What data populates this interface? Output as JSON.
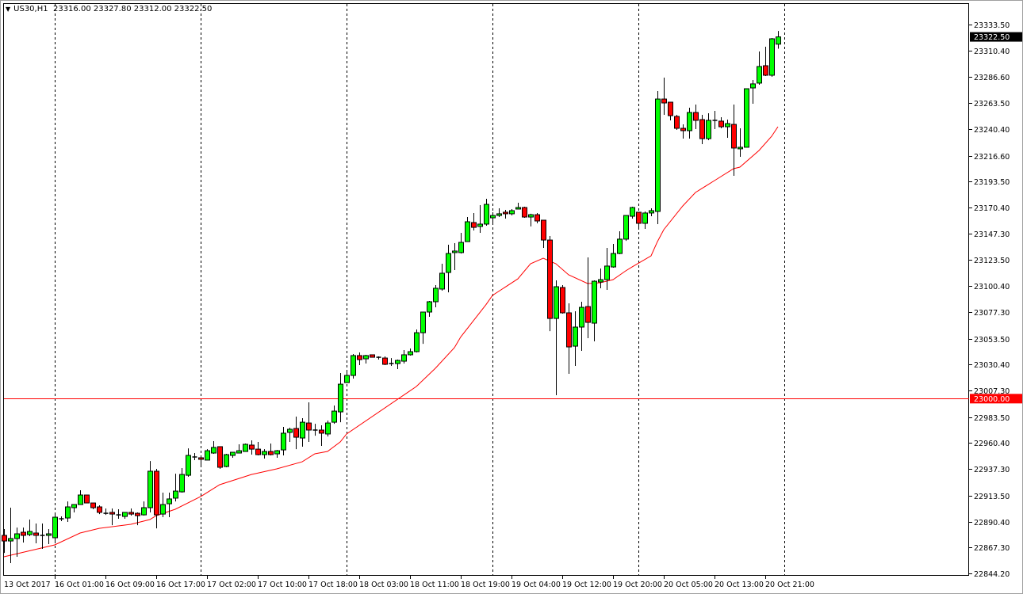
{
  "header": {
    "menu_icon": "triangle-down-icon",
    "symbol": "US30,H1",
    "ohlc": "23316.00 23327.80 23312.00 23322.50"
  },
  "colors": {
    "bull": "#00ff00",
    "bear": "#ff0000",
    "wick": "#000000",
    "ma": "#ff0000",
    "level_line": "#ff0000",
    "grid_separator": "#000000",
    "background": "#ffffff"
  },
  "chart_data": {
    "type": "candlestick",
    "symbol": "US30",
    "timeframe": "H1",
    "ylim": [
      22844.2,
      23333.5
    ],
    "grid": false,
    "y_ticks": [
      "23333.50",
      "23310.40",
      "23286.60",
      "23263.50",
      "23240.40",
      "23216.60",
      "23193.50",
      "23170.40",
      "23147.30",
      "23123.50",
      "23100.40",
      "23077.30",
      "23053.50",
      "23030.40",
      "23007.30",
      "22983.50",
      "22960.40",
      "22937.30",
      "22913.50",
      "22890.40",
      "22867.30",
      "22844.20"
    ],
    "x_tick_labels": [
      "13 Oct 2017",
      "16 Oct 01:00",
      "16 Oct 09:00",
      "16 Oct 17:00",
      "17 Oct 02:00",
      "17 Oct 10:00",
      "17 Oct 18:00",
      "18 Oct 03:00",
      "18 Oct 11:00",
      "18 Oct 19:00",
      "19 Oct 04:00",
      "19 Oct 12:00",
      "19 Oct 20:00",
      "20 Oct 05:00",
      "20 Oct 13:00",
      "20 Oct 21:00"
    ],
    "day_separators": [
      "16 Oct 01:00",
      "17 Oct 01:00",
      "18 Oct 01:00",
      "19 Oct 01:00",
      "20 Oct 01:00",
      "21 Oct 01:00"
    ],
    "current_price": {
      "value": 23322.5,
      "label": "23322.50"
    },
    "horizontal_level": {
      "value": 23000.0,
      "label": "23000.00"
    },
    "candles_columns": [
      "time",
      "open",
      "high",
      "low",
      "close"
    ],
    "candles": [
      [
        "13 Oct 16:00",
        22878.1,
        22883.7,
        22862.5,
        22873.1
      ],
      [
        "13 Oct 17:00",
        22873.1,
        22902.8,
        22853.4,
        22875.3
      ],
      [
        "13 Oct 18:00",
        22875.3,
        22885.1,
        22859.0,
        22879.5
      ],
      [
        "13 Oct 19:00",
        22880.9,
        22885.1,
        22871.7,
        22878.1
      ],
      [
        "13 Oct 20:00",
        22878.8,
        22892.2,
        22877.4,
        22881.6
      ],
      [
        "13 Oct 21:00",
        22880.2,
        22888.7,
        22871.0,
        22878.1
      ],
      [
        "13 Oct 22:00",
        22878.1,
        22888.7,
        22866.1,
        22878.1
      ],
      [
        "13 Oct 23:00",
        22878.1,
        22883.7,
        22870.3,
        22879.5
      ],
      [
        "16 Oct 01:00",
        22876.0,
        22898.6,
        22873.1,
        22894.3
      ],
      [
        "16 Oct 02:00",
        22892.9,
        22895.0,
        22890.8,
        22892.9
      ],
      [
        "16 Oct 03:00",
        22893.6,
        22908.4,
        22890.1,
        22903.5
      ],
      [
        "16 Oct 04:00",
        22902.8,
        22905.6,
        22898.6,
        22905.6
      ],
      [
        "16 Oct 05:00",
        22905.6,
        22918.3,
        22905.6,
        22914.1
      ],
      [
        "16 Oct 06:00",
        22914.1,
        22914.1,
        22907.0,
        22907.0
      ],
      [
        "16 Oct 07:00",
        22907.0,
        22907.0,
        22901.4,
        22902.8
      ],
      [
        "16 Oct 08:00",
        22903.5,
        22904.9,
        22897.1,
        22898.6
      ],
      [
        "16 Oct 09:00",
        22897.8,
        22902.1,
        22896.4,
        22897.8
      ],
      [
        "16 Oct 10:00",
        22898.6,
        22902.1,
        22887.2,
        22897.1
      ],
      [
        "16 Oct 11:00",
        22896.4,
        22901.4,
        22892.9,
        22896.4
      ],
      [
        "16 Oct 12:00",
        22895.0,
        22898.6,
        22892.9,
        22898.6
      ],
      [
        "16 Oct 13:00",
        22898.6,
        22902.1,
        22895.7,
        22897.1
      ],
      [
        "16 Oct 14:00",
        22897.8,
        22898.6,
        22887.2,
        22895.7
      ],
      [
        "16 Oct 15:00",
        22896.4,
        22908.4,
        22895.7,
        22902.8
      ],
      [
        "16 Oct 16:00",
        22902.8,
        22944.4,
        22898.6,
        22935.3
      ],
      [
        "16 Oct 17:00",
        22935.3,
        22937.4,
        22884.4,
        22896.4
      ],
      [
        "16 Oct 18:00",
        22897.1,
        22916.2,
        22894.3,
        22905.6
      ],
      [
        "16 Oct 19:00",
        22906.3,
        22916.2,
        22894.3,
        22910.6
      ],
      [
        "16 Oct 20:00",
        22911.3,
        22933.1,
        22908.4,
        22917.6
      ],
      [
        "16 Oct 21:00",
        22916.9,
        22938.1,
        22916.2,
        22932.4
      ],
      [
        "16 Oct 22:00",
        22931.7,
        22955.7,
        22930.3,
        22949.4
      ],
      [
        "16 Oct 23:00",
        22948.0,
        22951.5,
        22945.2,
        22948.0
      ],
      [
        "17 Oct 01:00",
        22947.3,
        22949.4,
        22940.2,
        22945.9
      ],
      [
        "17 Oct 02:00",
        22945.2,
        22955.0,
        22945.2,
        22953.6
      ],
      [
        "17 Oct 03:00",
        22951.5,
        22962.1,
        22950.8,
        22956.5
      ],
      [
        "17 Oct 04:00",
        22957.2,
        22957.2,
        22937.4,
        22938.8
      ],
      [
        "17 Oct 05:00",
        22939.5,
        22950.8,
        22938.8,
        22950.1
      ],
      [
        "17 Oct 06:00",
        22949.4,
        22952.2,
        22947.3,
        22952.2
      ],
      [
        "17 Oct 07:00",
        22951.5,
        22959.3,
        22951.5,
        22953.6
      ],
      [
        "17 Oct 08:00",
        22952.9,
        22960.0,
        22952.9,
        22959.3
      ],
      [
        "17 Oct 09:00",
        22958.6,
        22962.8,
        22950.1,
        22955.0
      ],
      [
        "17 Oct 10:00",
        22955.0,
        22961.4,
        22949.4,
        22950.1
      ],
      [
        "17 Oct 11:00",
        22950.1,
        22955.0,
        22946.6,
        22952.9
      ],
      [
        "17 Oct 12:00",
        22952.9,
        22960.0,
        22949.4,
        22950.1
      ],
      [
        "17 Oct 13:00",
        22950.8,
        22954.3,
        22947.3,
        22953.6
      ],
      [
        "17 Oct 14:00",
        22954.3,
        22974.8,
        22949.4,
        22969.2
      ],
      [
        "17 Oct 15:00",
        22969.9,
        22974.1,
        22961.4,
        22972.7
      ],
      [
        "17 Oct 16:00",
        22973.4,
        22984.0,
        22955.0,
        22965.6
      ],
      [
        "17 Oct 17:00",
        22964.9,
        22982.6,
        22957.2,
        22979.0
      ],
      [
        "17 Oct 18:00",
        22978.3,
        22996.7,
        22961.4,
        22972.0
      ],
      [
        "17 Oct 19:00",
        22972.0,
        22977.6,
        22967.0,
        22972.0
      ],
      [
        "17 Oct 20:00",
        22972.0,
        22976.2,
        22957.9,
        22969.2
      ],
      [
        "17 Oct 21:00",
        22968.5,
        22980.5,
        22966.3,
        22978.3
      ],
      [
        "17 Oct 22:00",
        22979.0,
        22993.9,
        22977.6,
        22988.9
      ],
      [
        "17 Oct 23:00",
        22988.2,
        23022.8,
        22979.0,
        23012.9
      ],
      [
        "18 Oct 01:00",
        23014.3,
        23025.6,
        23014.3,
        23020.7
      ],
      [
        "18 Oct 02:00",
        23020.7,
        23039.8,
        23017.9,
        23038.4
      ],
      [
        "18 Oct 03:00",
        23038.4,
        23041.2,
        23029.9,
        23034.8
      ],
      [
        "18 Oct 04:00",
        23035.5,
        23039.1,
        23031.3,
        23038.4
      ],
      [
        "18 Oct 05:00",
        23039.1,
        23039.1,
        23036.9,
        23036.9
      ],
      [
        "18 Oct 06:00",
        23036.9,
        23037.7,
        23034.8,
        23036.9
      ],
      [
        "18 Oct 07:00",
        23036.2,
        23037.7,
        23029.9,
        23030.6
      ],
      [
        "18 Oct 08:00",
        23031.3,
        23036.2,
        23029.2,
        23031.3
      ],
      [
        "18 Oct 09:00",
        23031.3,
        23034.8,
        23026.4,
        23034.1
      ],
      [
        "18 Oct 10:00",
        23033.4,
        23043.3,
        23031.3,
        23039.1
      ],
      [
        "18 Oct 11:00",
        23039.1,
        23044.7,
        23038.4,
        23041.9
      ],
      [
        "18 Oct 12:00",
        23041.9,
        23061.7,
        23041.2,
        23058.8
      ],
      [
        "18 Oct 13:00",
        23058.8,
        23077.2,
        23048.9,
        23077.2
      ],
      [
        "18 Oct 14:00",
        23077.2,
        23087.1,
        23073.0,
        23086.4
      ],
      [
        "18 Oct 15:00",
        23086.4,
        23101.2,
        23081.4,
        23098.4
      ],
      [
        "18 Oct 16:00",
        23097.7,
        23120.3,
        23096.3,
        23111.8
      ],
      [
        "18 Oct 17:00",
        23112.5,
        23137.2,
        23094.8,
        23129.4
      ],
      [
        "18 Oct 18:00",
        23130.2,
        23138.6,
        23114.6,
        23131.6
      ],
      [
        "18 Oct 19:00",
        23130.2,
        23147.8,
        23129.4,
        23139.3
      ],
      [
        "18 Oct 20:00",
        23140.0,
        23161.9,
        23140.0,
        23157.7
      ],
      [
        "18 Oct 21:00",
        23157.0,
        23165.5,
        23149.9,
        23152.7
      ],
      [
        "18 Oct 22:00",
        23153.5,
        23172.5,
        23147.8,
        23155.6
      ],
      [
        "18 Oct 23:00",
        23155.6,
        23178.2,
        23154.2,
        23173.2
      ],
      [
        "19 Oct 01:00",
        23161.2,
        23166.2,
        23155.6,
        23163.3
      ],
      [
        "19 Oct 02:00",
        23163.3,
        23169.7,
        23161.9,
        23164.8
      ],
      [
        "19 Oct 03:00",
        23166.2,
        23168.3,
        23160.5,
        23164.8
      ],
      [
        "19 Oct 04:00",
        23164.8,
        23169.0,
        23163.3,
        23167.6
      ],
      [
        "19 Oct 05:00",
        23169.0,
        23174.6,
        23169.0,
        23170.4
      ],
      [
        "19 Oct 06:00",
        23170.4,
        23171.1,
        23161.2,
        23161.9
      ],
      [
        "19 Oct 07:00",
        23161.9,
        23164.8,
        23153.5,
        23164.0
      ],
      [
        "19 Oct 08:00",
        23164.0,
        23165.5,
        23156.3,
        23158.4
      ],
      [
        "19 Oct 09:00",
        23159.1,
        23159.1,
        23134.4,
        23141.4
      ],
      [
        "19 Oct 10:00",
        23141.4,
        23145.0,
        23060.2,
        23071.5
      ],
      [
        "19 Oct 11:00",
        23071.5,
        23105.4,
        23003.1,
        23099.8
      ],
      [
        "19 Oct 12:00",
        23099.1,
        23101.2,
        23075.8,
        23076.5
      ],
      [
        "19 Oct 13:00",
        23076.5,
        23085.0,
        23022.1,
        23046.1
      ],
      [
        "19 Oct 14:00",
        23046.8,
        23077.9,
        23029.2,
        23063.8
      ],
      [
        "19 Oct 15:00",
        23063.8,
        23086.4,
        23042.6,
        23081.4
      ],
      [
        "19 Oct 16:00",
        23082.1,
        23125.9,
        23053.9,
        23068.0
      ],
      [
        "19 Oct 17:00",
        23067.3,
        23105.4,
        23051.1,
        23104.7
      ],
      [
        "19 Oct 18:00",
        23104.0,
        23116.0,
        23098.4,
        23106.1
      ],
      [
        "19 Oct 19:00",
        23106.1,
        23134.4,
        23097.0,
        23118.2
      ],
      [
        "19 Oct 20:00",
        23117.4,
        23137.9,
        23116.7,
        23129.4
      ],
      [
        "19 Oct 21:00",
        23129.4,
        23149.2,
        23128.7,
        23142.2
      ],
      [
        "19 Oct 22:00",
        23142.2,
        23163.3,
        23140.7,
        23163.3
      ],
      [
        "19 Oct 23:00",
        23162.6,
        23171.1,
        23160.5,
        23170.4
      ],
      [
        "20 Oct 01:00",
        23166.2,
        23166.2,
        23152.0,
        23156.3
      ],
      [
        "20 Oct 02:00",
        23156.3,
        23166.9,
        23151.3,
        23165.5
      ],
      [
        "20 Oct 03:00",
        23165.5,
        23169.7,
        23162.6,
        23167.6
      ],
      [
        "20 Oct 04:00",
        23166.9,
        23274.2,
        23155.6,
        23267.1
      ],
      [
        "20 Oct 05:00",
        23267.1,
        23286.2,
        23253.0,
        23263.6
      ],
      [
        "20 Oct 06:00",
        23264.3,
        23264.3,
        23248.1,
        23252.3
      ],
      [
        "20 Oct 07:00",
        23251.6,
        23253.0,
        23239.6,
        23241.0
      ],
      [
        "20 Oct 08:00",
        23241.0,
        23244.5,
        23231.8,
        23238.9
      ],
      [
        "20 Oct 09:00",
        23238.9,
        23259.4,
        23231.8,
        23255.1
      ],
      [
        "20 Oct 10:00",
        23255.1,
        23262.2,
        23240.3,
        23248.1
      ],
      [
        "20 Oct 11:00",
        23248.8,
        23253.0,
        23226.9,
        23231.8
      ],
      [
        "20 Oct 12:00",
        23231.8,
        23254.4,
        23230.4,
        23248.1
      ],
      [
        "20 Oct 13:00",
        23248.1,
        23256.5,
        23240.3,
        23248.1
      ],
      [
        "20 Oct 14:00",
        23247.4,
        23250.9,
        23241.0,
        23242.4
      ],
      [
        "20 Oct 15:00",
        23242.4,
        23248.8,
        23232.5,
        23245.2
      ],
      [
        "20 Oct 16:00",
        23244.5,
        23262.2,
        23198.6,
        23223.4
      ],
      [
        "20 Oct 17:00",
        23222.7,
        23241.0,
        23215.6,
        23224.1
      ],
      [
        "20 Oct 18:00",
        23224.1,
        23276.3,
        23224.1,
        23276.3
      ],
      [
        "20 Oct 19:00",
        23277.0,
        23284.1,
        23262.9,
        23280.6
      ],
      [
        "20 Oct 20:00",
        23281.3,
        23309.5,
        23279.8,
        23296.1
      ],
      [
        "20 Oct 21:00",
        23296.8,
        23313.7,
        23287.6,
        23288.3
      ],
      [
        "20 Oct 22:00",
        23288.3,
        23321.5,
        23286.9,
        23320.8
      ],
      [
        "20 Oct 23:00",
        23316.0,
        23327.8,
        23312.0,
        23322.5
      ]
    ],
    "moving_average": [
      [
        "13 Oct 16:00",
        22859.0
      ],
      [
        "16 Oct 01:00",
        22869.6
      ],
      [
        "16 Oct 05:00",
        22880.2
      ],
      [
        "16 Oct 08:00",
        22884.4
      ],
      [
        "16 Oct 13:00",
        22888.0
      ],
      [
        "16 Oct 16:00",
        22892.2
      ],
      [
        "16 Oct 17:00",
        22895.7
      ],
      [
        "16 Oct 20:00",
        22901.4
      ],
      [
        "17 Oct 01:00",
        22912.7
      ],
      [
        "17 Oct 04:00",
        22923.3
      ],
      [
        "17 Oct 09:00",
        22932.4
      ],
      [
        "17 Oct 13:00",
        22937.4
      ],
      [
        "17 Oct 17:00",
        22943.7
      ],
      [
        "17 Oct 19:00",
        22950.8
      ],
      [
        "17 Oct 21:00",
        22952.9
      ],
      [
        "17 Oct 23:00",
        22961.4
      ],
      [
        "18 Oct 01:00",
        22968.5
      ],
      [
        "18 Oct 10:00",
        23003.1
      ],
      [
        "18 Oct 12:00",
        23010.8
      ],
      [
        "18 Oct 15:00",
        23027.1
      ],
      [
        "18 Oct 18:00",
        23045.4
      ],
      [
        "18 Oct 19:00",
        23055.0
      ],
      [
        "18 Oct 23:00",
        23084.0
      ],
      [
        "19 Oct 01:00",
        23092.0
      ],
      [
        "19 Oct 05:00",
        23106.8
      ],
      [
        "19 Oct 07:00",
        23120.3
      ],
      [
        "19 Oct 09:00",
        23125.2
      ],
      [
        "19 Oct 11:00",
        23120.3
      ],
      [
        "19 Oct 13:00",
        23110.4
      ],
      [
        "19 Oct 16:00",
        23102.6
      ],
      [
        "19 Oct 18:00",
        23103.3
      ],
      [
        "19 Oct 20:00",
        23106.1
      ],
      [
        "19 Oct 22:00",
        23113.9
      ],
      [
        "19 Oct 23:00",
        23117.4
      ],
      [
        "20 Oct 03:00",
        23127.3
      ],
      [
        "20 Oct 04:00",
        23140.0
      ],
      [
        "20 Oct 05:00",
        23150.6
      ],
      [
        "20 Oct 08:00",
        23171.8
      ],
      [
        "20 Oct 10:00",
        23183.8
      ],
      [
        "20 Oct 13:00",
        23194.4
      ],
      [
        "20 Oct 16:00",
        23205.0
      ],
      [
        "20 Oct 17:00",
        23206.4
      ],
      [
        "20 Oct 20:00",
        23221.2
      ],
      [
        "20 Oct 22:00",
        23233.9
      ],
      [
        "20 Oct 23:00",
        23242.4
      ]
    ]
  }
}
